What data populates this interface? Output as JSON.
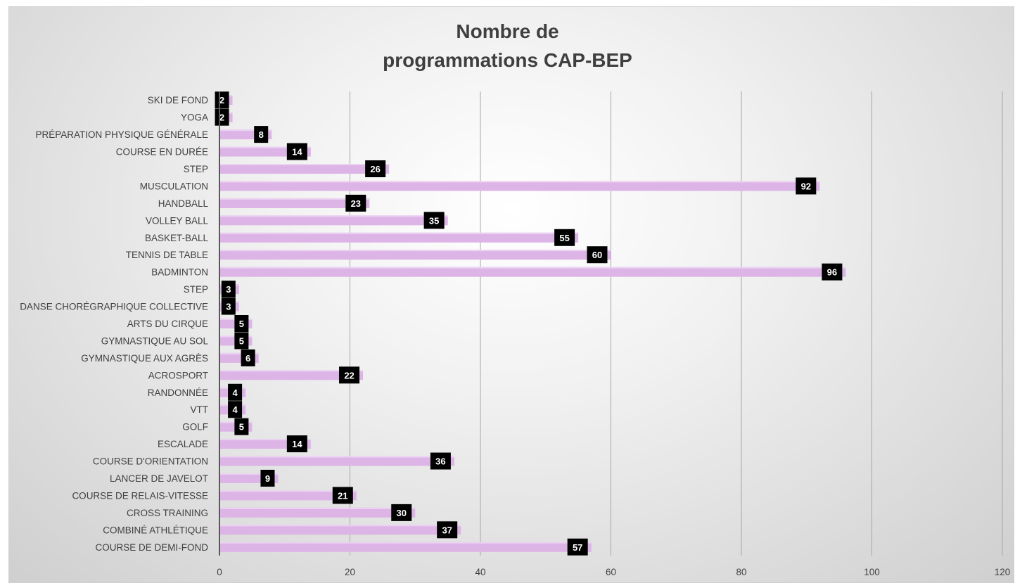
{
  "chart_data": {
    "type": "bar",
    "orientation": "horizontal",
    "title": "Nombre de programmations CAP-BEP",
    "title_lines": [
      "Nombre de",
      "programmations CAP-BEP"
    ],
    "categories": [
      "SKI DE FOND",
      "YOGA",
      "PRÉPARATION PHYSIQUE GÉNÉRALE",
      "COURSE EN DURÉE",
      "STEP",
      "MUSCULATION",
      "HANDBALL",
      "VOLLEY BALL",
      "BASKET-BALL",
      "TENNIS DE TABLE",
      "BADMINTON",
      "STEP",
      "DANSE CHORÉGRAPHIQUE COLLECTIVE",
      "ARTS DU CIRQUE",
      "GYMNASTIQUE AU SOL",
      "GYMNASTIQUE AUX AGRÈS",
      "ACROSPORT",
      "RANDONNÉE",
      "VTT",
      "GOLF",
      "ESCALADE",
      "COURSE D'ORIENTATION",
      "LANCER DE JAVELOT",
      "COURSE DE RELAIS-VITESSE",
      "CROSS TRAINING",
      "COMBINÉ ATHLÉTIQUE",
      "COURSE DE DEMI-FOND"
    ],
    "values": [
      2,
      2,
      8,
      14,
      26,
      92,
      23,
      35,
      55,
      60,
      96,
      3,
      3,
      5,
      5,
      6,
      22,
      4,
      4,
      5,
      14,
      36,
      9,
      21,
      30,
      37,
      57
    ],
    "xlim": [
      0,
      120
    ],
    "xticks": [
      0,
      20,
      40,
      60,
      80,
      100,
      120
    ],
    "xlabel": "",
    "ylabel": "",
    "grid": "vertical",
    "legend": "none",
    "data_labels": true,
    "colors": {
      "bar": "#dcb4e6",
      "bar_highlight": "#ecd2f2",
      "label_box": "#000000",
      "label_text": "#ffffff",
      "grid": "#a6a6a6",
      "axis": "#595959",
      "title": "#3f3f3f"
    }
  }
}
